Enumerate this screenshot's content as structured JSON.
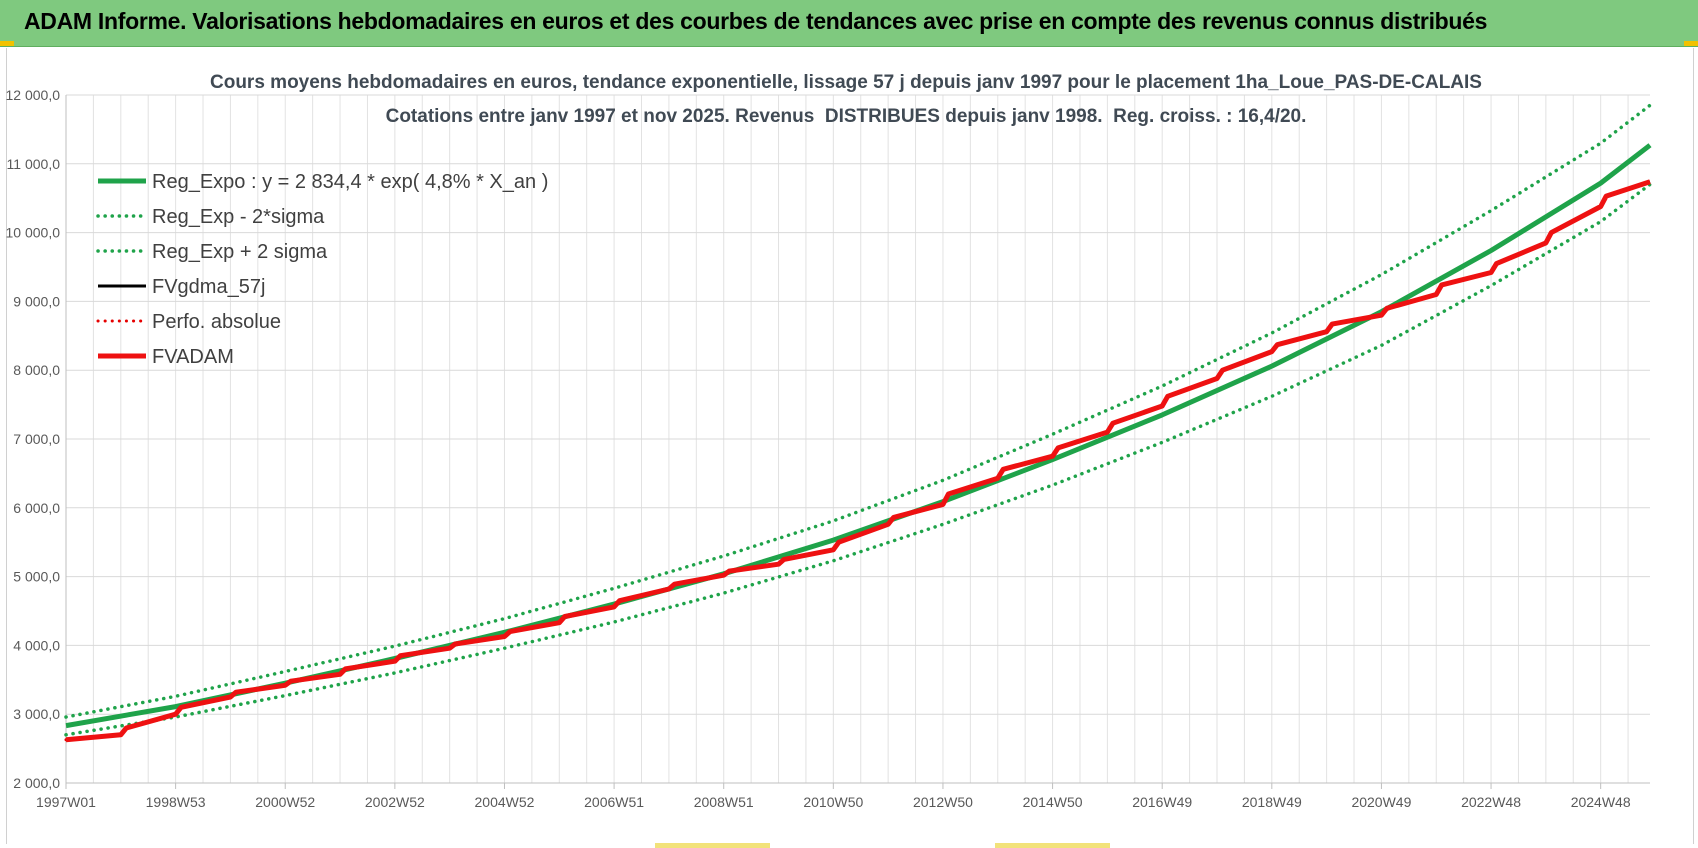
{
  "banner": {
    "title": "ADAM Informe. Valorisations hebdomadaires en euros et des courbes de tendances avec prise en compte des revenus connus distribués"
  },
  "colors": {
    "banner_bg": "#7fc97f",
    "trend_green": "#1fa34a",
    "band_green": "#1fa34a",
    "fvgdma_black": "#000000",
    "perfo_red": "#e60000",
    "fvadam_red": "#ee1111",
    "grid": "#d9d9d9"
  },
  "chart_data": {
    "type": "line",
    "title": "Cours moyens hebdomadaires en euros, tendance exponentielle, lissage 57 j depuis janv 1997 pour le placement 1ha_Loue_PAS-DE-CALAIS",
    "subtitle": "Cotations entre janv 1997 et nov 2025. Revenus  DISTRIBUES depuis janv 1998.  Reg. croiss. : 16,4/20.",
    "xlabel": "",
    "ylabel": "",
    "x_range": [
      1997.0,
      2025.9
    ],
    "ylim": [
      2000,
      12000
    ],
    "y_ticks": [
      2000,
      3000,
      4000,
      5000,
      6000,
      7000,
      8000,
      9000,
      10000,
      11000,
      12000
    ],
    "y_tick_labels": [
      "2 000,0",
      "3 000,0",
      "4 000,0",
      "5 000,0",
      "6 000,0",
      "7 000,0",
      "8 000,0",
      "9 000,0",
      "10 000,0",
      "11 000,0",
      "12 000,0"
    ],
    "x_ticks": [
      {
        "x": 1997.0,
        "label": "1997W01"
      },
      {
        "x": 1999.0,
        "label": "1998W53"
      },
      {
        "x": 2001.0,
        "label": "2000W52"
      },
      {
        "x": 2003.0,
        "label": "2002W52"
      },
      {
        "x": 2005.0,
        "label": "2004W52"
      },
      {
        "x": 2007.0,
        "label": "2006W51"
      },
      {
        "x": 2009.0,
        "label": "2008W51"
      },
      {
        "x": 2011.0,
        "label": "2010W50"
      },
      {
        "x": 2013.0,
        "label": "2012W50"
      },
      {
        "x": 2015.0,
        "label": "2014W50"
      },
      {
        "x": 2017.0,
        "label": "2016W49"
      },
      {
        "x": 2019.0,
        "label": "2018W49"
      },
      {
        "x": 2021.0,
        "label": "2020W49"
      },
      {
        "x": 2023.0,
        "label": "2022W48"
      },
      {
        "x": 2025.0,
        "label": "2024W48"
      }
    ],
    "grid": true,
    "legend_position": "top-left",
    "series": [
      {
        "name": "Reg_Expo : y = 2 834,4 * exp( 4,8% *  X_an )",
        "style": "solid",
        "color": "#1fa34a",
        "width": 5,
        "x": [
          1997.0,
          1999.0,
          2001.0,
          2003.0,
          2005.0,
          2007.0,
          2009.0,
          2011.0,
          2013.0,
          2015.0,
          2017.0,
          2019.0,
          2021.0,
          2023.0,
          2025.0,
          2025.9
        ],
        "y": [
          2834,
          3110,
          3450,
          3810,
          4190,
          4600,
          5040,
          5530,
          6090,
          6700,
          7350,
          8060,
          8850,
          9740,
          10720,
          11270
        ]
      },
      {
        "name": "Reg_Exp - 2*sigma",
        "style": "dotted",
        "color": "#1fa34a",
        "width": 3.5,
        "x": [
          1997.0,
          1999.0,
          2001.0,
          2003.0,
          2005.0,
          2007.0,
          2009.0,
          2011.0,
          2013.0,
          2015.0,
          2017.0,
          2019.0,
          2021.0,
          2023.0,
          2025.0,
          2025.9
        ],
        "y": [
          2700,
          2960,
          3270,
          3600,
          3960,
          4340,
          4760,
          5230,
          5760,
          6330,
          6950,
          7620,
          8360,
          9230,
          10160,
          10700
        ]
      },
      {
        "name": "Reg_Exp + 2 sigma",
        "style": "dotted",
        "color": "#1fa34a",
        "width": 3.5,
        "x": [
          1997.0,
          1999.0,
          2001.0,
          2003.0,
          2005.0,
          2007.0,
          2009.0,
          2011.0,
          2013.0,
          2015.0,
          2017.0,
          2019.0,
          2021.0,
          2023.0,
          2025.0,
          2025.9
        ],
        "y": [
          2960,
          3260,
          3620,
          3990,
          4390,
          4830,
          5300,
          5810,
          6400,
          7070,
          7770,
          8540,
          9390,
          10320,
          11300,
          11850
        ]
      },
      {
        "name": "FVgdma_57j",
        "style": "solid",
        "color": "#000000",
        "width": 3,
        "x": [
          1997.0,
          1998.0,
          1998.1,
          1999.0,
          1999.1,
          2000.0,
          2000.1,
          2001.0,
          2001.1,
          2002.0,
          2002.1,
          2003.0,
          2003.1,
          2004.0,
          2004.1,
          2005.0,
          2005.1,
          2006.0,
          2006.1,
          2007.0,
          2007.1,
          2008.0,
          2008.1,
          2009.0,
          2009.1,
          2010.0,
          2010.1,
          2011.0,
          2011.1,
          2012.0,
          2012.1,
          2013.0,
          2013.1,
          2014.0,
          2014.1,
          2015.0,
          2015.1,
          2016.0,
          2016.1,
          2017.0,
          2017.1,
          2018.0,
          2018.1,
          2019.0,
          2019.1,
          2020.0,
          2020.1,
          2021.0,
          2021.1,
          2022.0,
          2022.1,
          2023.0,
          2023.1,
          2024.0,
          2024.1,
          2025.0,
          2025.1,
          2025.9
        ],
        "y": [
          2630,
          2700,
          2800,
          3000,
          3100,
          3250,
          3320,
          3420,
          3480,
          3580,
          3660,
          3770,
          3850,
          3960,
          4020,
          4130,
          4200,
          4330,
          4420,
          4560,
          4650,
          4820,
          4890,
          5020,
          5080,
          5180,
          5250,
          5390,
          5500,
          5760,
          5860,
          6050,
          6200,
          6430,
          6560,
          6750,
          6870,
          7100,
          7230,
          7480,
          7620,
          7880,
          8000,
          8270,
          8370,
          8560,
          8670,
          8800,
          8900,
          9100,
          9240,
          9420,
          9550,
          9850,
          10000,
          10380,
          10530,
          10740
        ]
      },
      {
        "name": "Perfo. absolue",
        "style": "dotted",
        "color": "#e60000",
        "width": 3,
        "x": [
          1997.0,
          1998.0,
          1998.1,
          1999.0,
          1999.1,
          2000.0,
          2000.1,
          2001.0,
          2001.1,
          2002.0,
          2002.1,
          2003.0,
          2003.1,
          2004.0,
          2004.1,
          2005.0,
          2005.1,
          2006.0,
          2006.1,
          2007.0,
          2007.1,
          2008.0,
          2008.1,
          2009.0,
          2009.1,
          2010.0,
          2010.1,
          2011.0,
          2011.1,
          2012.0,
          2012.1,
          2013.0,
          2013.1,
          2014.0,
          2014.1,
          2015.0,
          2015.1,
          2016.0,
          2016.1,
          2017.0,
          2017.1,
          2018.0,
          2018.1,
          2019.0,
          2019.1,
          2020.0,
          2020.1,
          2021.0,
          2021.1,
          2022.0,
          2022.1,
          2023.0,
          2023.1,
          2024.0,
          2024.1,
          2025.0,
          2025.1,
          2025.9
        ],
        "y": [
          2630,
          2700,
          2800,
          3000,
          3100,
          3250,
          3320,
          3420,
          3480,
          3580,
          3660,
          3770,
          3850,
          3960,
          4020,
          4130,
          4200,
          4330,
          4420,
          4560,
          4650,
          4820,
          4890,
          5020,
          5080,
          5180,
          5250,
          5390,
          5500,
          5760,
          5860,
          6050,
          6200,
          6430,
          6560,
          6750,
          6870,
          7100,
          7230,
          7480,
          7620,
          7880,
          8000,
          8270,
          8370,
          8560,
          8670,
          8800,
          8900,
          9100,
          9240,
          9420,
          9550,
          9850,
          10000,
          10380,
          10530,
          10740
        ]
      },
      {
        "name": "FVADAM",
        "style": "solid",
        "color": "#ee1111",
        "width": 5,
        "x": [
          1997.0,
          1998.0,
          1998.1,
          1999.0,
          1999.1,
          2000.0,
          2000.1,
          2001.0,
          2001.1,
          2002.0,
          2002.1,
          2003.0,
          2003.1,
          2004.0,
          2004.1,
          2005.0,
          2005.1,
          2006.0,
          2006.1,
          2007.0,
          2007.1,
          2008.0,
          2008.1,
          2009.0,
          2009.1,
          2010.0,
          2010.1,
          2011.0,
          2011.1,
          2012.0,
          2012.1,
          2013.0,
          2013.1,
          2014.0,
          2014.1,
          2015.0,
          2015.1,
          2016.0,
          2016.1,
          2017.0,
          2017.1,
          2018.0,
          2018.1,
          2019.0,
          2019.1,
          2020.0,
          2020.1,
          2021.0,
          2021.1,
          2022.0,
          2022.1,
          2023.0,
          2023.1,
          2024.0,
          2024.1,
          2025.0,
          2025.1,
          2025.9
        ],
        "y": [
          2630,
          2700,
          2800,
          3000,
          3100,
          3250,
          3320,
          3420,
          3480,
          3580,
          3660,
          3770,
          3850,
          3960,
          4020,
          4130,
          4200,
          4330,
          4420,
          4560,
          4650,
          4820,
          4890,
          5020,
          5080,
          5180,
          5250,
          5390,
          5500,
          5760,
          5860,
          6050,
          6200,
          6430,
          6560,
          6750,
          6870,
          7100,
          7230,
          7480,
          7620,
          7880,
          8000,
          8270,
          8370,
          8560,
          8670,
          8800,
          8900,
          9100,
          9240,
          9420,
          9550,
          9850,
          10000,
          10380,
          10530,
          10740
        ]
      }
    ]
  }
}
